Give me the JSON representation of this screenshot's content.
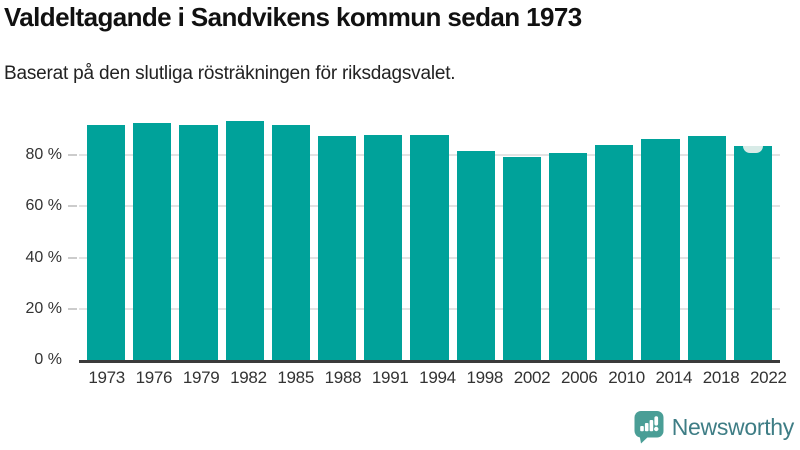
{
  "title": "Valdeltagande i Sandvikens kommun sedan 1973",
  "subtitle": "Baserat på den slutliga rösträkningen för riksdagsvalet.",
  "chart_data": {
    "type": "bar",
    "title": "Valdeltagande i Sandvikens kommun sedan 1973",
    "subtitle": "Baserat på den slutliga rösträkningen för riksdagsvalet.",
    "categories": [
      "1973",
      "1976",
      "1979",
      "1982",
      "1985",
      "1988",
      "1991",
      "1994",
      "1998",
      "2002",
      "2006",
      "2010",
      "2014",
      "2018",
      "2022"
    ],
    "values": [
      91.9,
      92.7,
      91.9,
      93.5,
      91.9,
      87.6,
      88.0,
      88.0,
      81.8,
      79.4,
      81.0,
      84.1,
      86.4,
      87.6,
      83.7
    ],
    "unit": "%",
    "xlabel": "",
    "ylabel": "",
    "ylim": [
      0,
      100
    ],
    "yticks": [
      {
        "value": 0,
        "label": "0 %"
      },
      {
        "value": 20,
        "label": "20 %"
      },
      {
        "value": 40,
        "label": "40 %"
      },
      {
        "value": 60,
        "label": "60 %"
      },
      {
        "value": 80,
        "label": "80 %"
      }
    ],
    "grid": "horizontal",
    "legend": "none",
    "annotations": [
      {
        "category": "2022",
        "shape": "notch-marker",
        "color": "#d8ebe7"
      }
    ]
  },
  "footer": {
    "brand": "Newsworthy",
    "icon": "newsworthy-speech-bubble-chart-icon"
  },
  "colors": {
    "bar": "#00a29a",
    "grid": "#e3e3e3",
    "axis": "#3b3b3b",
    "tick": "#cccccc",
    "text": "#333333",
    "marker": "#d8ebe7",
    "logo_icon": "#4a9e96",
    "logo_text": "#3e7d85"
  }
}
